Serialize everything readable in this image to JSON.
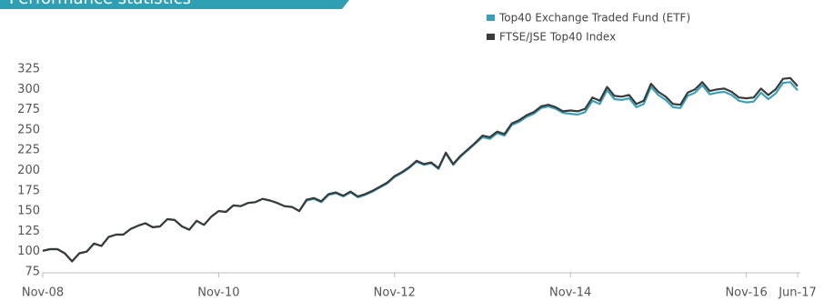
{
  "chart_data": {
    "type": "line",
    "title": "Performance statistics",
    "legend": "top-right",
    "categories": [
      "Nov-08",
      null,
      null,
      null,
      null,
      null,
      null,
      null,
      null,
      null,
      null,
      null,
      null,
      null,
      null,
      null,
      null,
      null,
      null,
      null,
      null,
      null,
      null,
      null,
      "Nov-10",
      null,
      null,
      null,
      null,
      null,
      null,
      null,
      null,
      null,
      null,
      null,
      null,
      null,
      null,
      null,
      null,
      null,
      null,
      null,
      null,
      null,
      null,
      null,
      "Nov-12",
      null,
      null,
      null,
      null,
      null,
      null,
      null,
      null,
      null,
      null,
      null,
      null,
      null,
      null,
      null,
      null,
      null,
      null,
      null,
      null,
      null,
      null,
      null,
      "Nov-14",
      null,
      null,
      null,
      null,
      null,
      null,
      null,
      null,
      null,
      null,
      null,
      null,
      null,
      null,
      null,
      null,
      null,
      null,
      null,
      null,
      null,
      null,
      null,
      "Nov-16",
      null,
      null,
      null,
      null,
      null,
      null,
      "Jun-17"
    ],
    "series": [
      {
        "name": "Top40 Exchange Traded Fund (ETF)",
        "color": "#3aa0b8",
        "values": [
          101,
          103,
          103,
          98,
          88,
          98,
          100,
          110,
          107,
          118,
          121,
          121,
          128,
          132,
          135,
          130,
          131,
          140,
          139,
          131,
          127,
          138,
          133,
          143,
          150,
          149,
          157,
          156,
          160,
          161,
          165,
          163,
          160,
          156,
          155,
          150,
          163,
          165,
          161,
          170,
          172,
          168,
          173,
          167,
          170,
          174,
          179,
          184,
          192,
          197,
          203,
          211,
          207,
          209,
          202,
          221,
          207,
          217,
          225,
          233,
          241,
          239,
          246,
          243,
          256,
          260,
          266,
          270,
          277,
          279,
          276,
          271,
          270,
          269,
          272,
          286,
          282,
          299,
          288,
          287,
          289,
          278,
          282,
          303,
          293,
          287,
          278,
          277,
          292,
          296,
          305,
          294,
          296,
          297,
          293,
          286,
          284,
          285,
          296,
          288,
          295,
          308,
          309,
          299
        ]
      },
      {
        "name": "FTSE/JSE Top40 Index",
        "color": "#3a3a3a",
        "values": [
          101,
          103,
          103,
          98,
          88,
          98,
          100,
          110,
          107,
          118,
          121,
          121,
          128,
          132,
          135,
          130,
          131,
          140,
          139,
          131,
          127,
          138,
          133,
          143,
          150,
          149,
          157,
          156,
          160,
          161,
          165,
          163,
          160,
          156,
          155,
          150,
          164,
          166,
          162,
          171,
          173,
          169,
          174,
          168,
          171,
          175,
          180,
          185,
          193,
          198,
          204,
          212,
          208,
          210,
          203,
          222,
          208,
          218,
          226,
          234,
          243,
          241,
          248,
          245,
          258,
          262,
          268,
          272,
          279,
          281,
          278,
          273,
          274,
          273,
          276,
          290,
          286,
          303,
          292,
          291,
          293,
          282,
          286,
          307,
          297,
          291,
          282,
          281,
          296,
          300,
          309,
          298,
          300,
          301,
          297,
          290,
          289,
          290,
          301,
          293,
          300,
          313,
          314,
          304
        ]
      }
    ],
    "ylim": [
      75,
      325
    ],
    "yticks": [
      75,
      100,
      125,
      150,
      175,
      200,
      225,
      250,
      275,
      300,
      325
    ],
    "grid": false
  }
}
